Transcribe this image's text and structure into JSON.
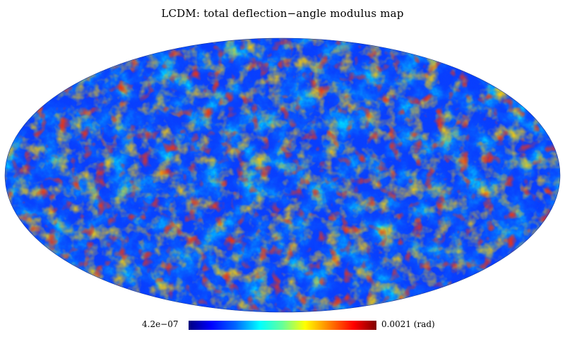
{
  "title": "LCDM: total deflection−angle modulus map",
  "colorbar": {
    "min_label": "4.2e−07",
    "max_label": "0.0021 (rad)",
    "colormap": "jet",
    "colors": [
      "#00007f",
      "#0000ff",
      "#0066ff",
      "#00ffff",
      "#66ff99",
      "#ffff00",
      "#ff7f00",
      "#ff0000",
      "#7f0000"
    ]
  },
  "map": {
    "projection": "mollweide",
    "background_color": "#0a3cff"
  }
}
